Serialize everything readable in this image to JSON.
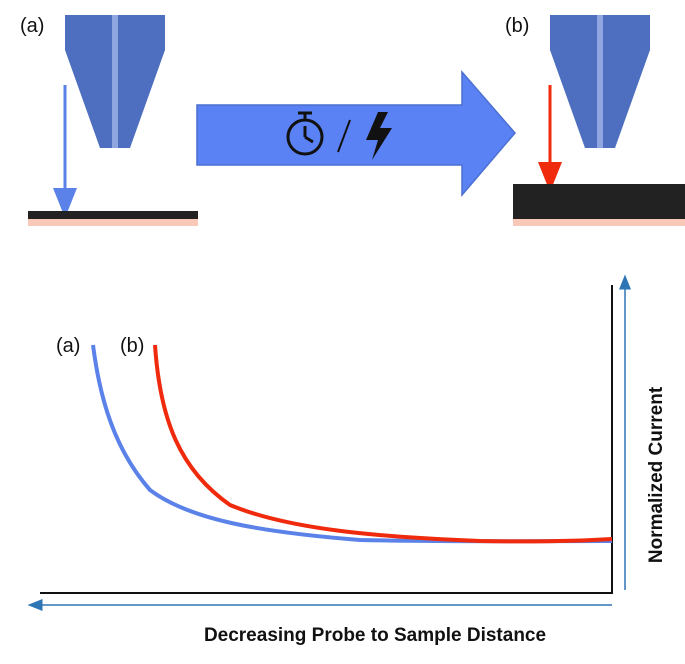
{
  "panel_a": {
    "label": "(a)"
  },
  "panel_b": {
    "label": "(b)"
  },
  "graph": {
    "curve_labels": [
      "(a)",
      "(b)"
    ],
    "y_axis_label": "Normalized Current",
    "x_axis_label": "Decreasing Probe to Sample Distance"
  }
}
